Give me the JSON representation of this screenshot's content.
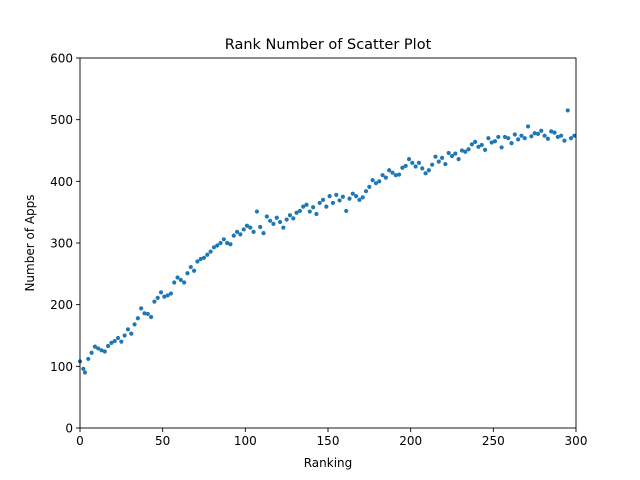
{
  "chart_data": {
    "type": "scatter",
    "title": "Rank Number of Scatter Plot",
    "xlabel": "Ranking",
    "ylabel": "Number of Apps",
    "xlim": [
      0,
      300
    ],
    "ylim": [
      0,
      600
    ],
    "xticks": [
      0,
      50,
      100,
      150,
      200,
      250,
      300
    ],
    "yticks": [
      0,
      100,
      200,
      300,
      400,
      500,
      600
    ],
    "grid": false,
    "legend": "none",
    "series": [
      {
        "color": "#1f77b4",
        "x": [
          0,
          2,
          3,
          5,
          7,
          9,
          11,
          13,
          15,
          17,
          19,
          21,
          23,
          25,
          27,
          29,
          31,
          33,
          35,
          37,
          39,
          41,
          43,
          45,
          47,
          49,
          51,
          53,
          55,
          57,
          59,
          61,
          63,
          65,
          67,
          69,
          71,
          73,
          75,
          77,
          79,
          81,
          83,
          85,
          87,
          89,
          91,
          93,
          95,
          97,
          99,
          101,
          103,
          105,
          107,
          109,
          111,
          113,
          115,
          117,
          119,
          121,
          123,
          125,
          127,
          129,
          131,
          133,
          135,
          137,
          139,
          141,
          143,
          145,
          147,
          149,
          151,
          153,
          155,
          157,
          159,
          161,
          163,
          165,
          167,
          169,
          171,
          173,
          175,
          177,
          179,
          181,
          183,
          185,
          187,
          189,
          191,
          193,
          195,
          197,
          199,
          201,
          203,
          205,
          207,
          209,
          211,
          213,
          215,
          217,
          219,
          221,
          223,
          225,
          227,
          229,
          231,
          233,
          235,
          237,
          239,
          241,
          243,
          245,
          247,
          249,
          251,
          253,
          255,
          257,
          259,
          261,
          263,
          265,
          267,
          269,
          271,
          273,
          275,
          277,
          279,
          281,
          283,
          285,
          287,
          289,
          291,
          293,
          295,
          297,
          299
        ],
        "y": [
          108,
          96,
          90,
          112,
          122,
          132,
          129,
          126,
          124,
          133,
          138,
          141,
          146,
          140,
          150,
          160,
          153,
          168,
          178,
          194,
          186,
          185,
          180,
          205,
          211,
          220,
          213,
          215,
          218,
          236,
          244,
          240,
          236,
          251,
          261,
          255,
          270,
          274,
          276,
          281,
          286,
          293,
          296,
          300,
          306,
          300,
          298,
          312,
          318,
          314,
          322,
          328,
          325,
          318,
          351,
          326,
          316,
          343,
          336,
          331,
          341,
          334,
          325,
          338,
          345,
          340,
          349,
          352,
          359,
          362,
          351,
          358,
          347,
          365,
          370,
          359,
          376,
          365,
          378,
          369,
          375,
          352,
          372,
          380,
          376,
          370,
          374,
          384,
          391,
          402,
          397,
          400,
          410,
          406,
          418,
          414,
          410,
          411,
          422,
          425,
          436,
          430,
          424,
          430,
          421,
          413,
          418,
          427,
          440,
          432,
          438,
          428,
          446,
          441,
          445,
          436,
          450,
          448,
          452,
          460,
          464,
          456,
          459,
          451,
          470,
          463,
          465,
          472,
          455,
          472,
          470,
          462,
          476,
          468,
          474,
          470,
          489,
          473,
          478,
          477,
          482,
          474,
          469,
          481,
          479,
          472,
          474,
          466,
          515,
          470,
          474
        ]
      }
    ]
  }
}
